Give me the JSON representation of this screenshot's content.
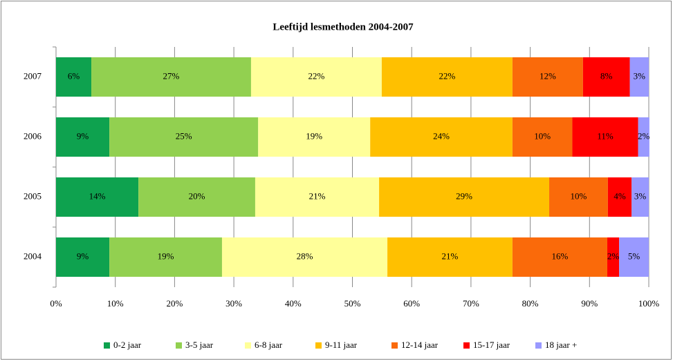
{
  "chart_data": {
    "type": "stacked-bar-horizontal",
    "title": "Leeftijd lesmethoden 2004-2007",
    "categories": [
      "2004",
      "2005",
      "2006",
      "2007"
    ],
    "xlim": [
      0,
      100
    ],
    "xticks": [
      {
        "value": 0,
        "label": "0%"
      },
      {
        "value": 10,
        "label": "10%"
      },
      {
        "value": 20,
        "label": "20%"
      },
      {
        "value": 30,
        "label": "30%"
      },
      {
        "value": 40,
        "label": "40%"
      },
      {
        "value": 50,
        "label": "50%"
      },
      {
        "value": 60,
        "label": "60%"
      },
      {
        "value": 70,
        "label": "70%"
      },
      {
        "value": 80,
        "label": "80%"
      },
      {
        "value": 90,
        "label": "90%"
      },
      {
        "value": 100,
        "label": "100%"
      }
    ],
    "grid": true,
    "legend": "bottom",
    "series": [
      {
        "name": "0-2 jaar",
        "color": "#0ea24f",
        "values": [
          9.0,
          13.9,
          9.0,
          5.95
        ],
        "value_labels": [
          "9%",
          "14%",
          "9%",
          "6%"
        ]
      },
      {
        "name": "3-5 jaar",
        "color": "#92d050",
        "values": [
          19.0,
          19.7,
          25.1,
          26.95
        ],
        "value_labels": [
          "19%",
          "20%",
          "25%",
          "27%"
        ]
      },
      {
        "name": "6-8 jaar",
        "color": "#ffff99",
        "values": [
          27.9,
          20.9,
          18.9,
          22.05
        ],
        "value_labels": [
          "28%",
          "21%",
          "19%",
          "22%"
        ]
      },
      {
        "name": "9-11 jaar",
        "color": "#ffc000",
        "values": [
          21.1,
          28.7,
          24.0,
          22.05
        ],
        "value_labels": [
          "21%",
          "29%",
          "24%",
          "22%"
        ]
      },
      {
        "name": "12-14 jaar",
        "color": "#fa6a0a",
        "values": [
          16.0,
          9.9,
          10.1,
          11.9
        ],
        "value_labels": [
          "16%",
          "10%",
          "10%",
          "12%"
        ]
      },
      {
        "name": "15-17 jaar",
        "color": "#ff0000",
        "values": [
          2.0,
          4.0,
          11.1,
          7.9
        ],
        "value_labels": [
          "2%",
          "4%",
          "11%",
          "8%"
        ]
      },
      {
        "name": "18 jaar +",
        "color": "#9999ff",
        "values": [
          5.0,
          2.9,
          1.9,
          3.2
        ],
        "value_labels": [
          "5%",
          "3%",
          "2%",
          "3%"
        ]
      }
    ]
  }
}
